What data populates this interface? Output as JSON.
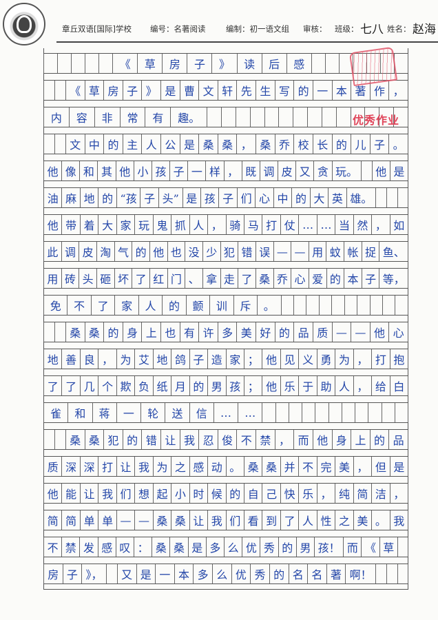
{
  "header": {
    "school": "章丘双语[国际]学校",
    "number": "编号：名著阅读",
    "editor": "编制：初一语文组",
    "review": "审核：",
    "class_label": "班级：",
    "class_value": "七八",
    "name_label": "姓名：",
    "name_value": "赵海"
  },
  "stamp": "优秀作业",
  "ink_color": "#2346a8",
  "stamp_color": "#e0455a",
  "rows": [
    [
      "",
      "",
      "",
      "",
      "",
      "《",
      "草",
      "房",
      "子",
      "》",
      "读",
      "后",
      "感",
      "",
      "",
      "",
      "",
      "",
      "",
      ""
    ],
    [
      "",
      "",
      "《",
      "草",
      "房",
      "子",
      "》",
      "是",
      "曹",
      "文",
      "轩",
      "先",
      "生",
      "写",
      "的",
      "一",
      "本",
      "著",
      "作",
      "，"
    ],
    [
      "内",
      "容",
      "非",
      "常",
      "有",
      "趣。",
      "",
      "",
      "",
      "",
      "",
      "",
      "",
      "",
      "",
      "",
      "",
      "",
      "",
      ""
    ],
    [
      "",
      "",
      "文",
      "中",
      "的",
      "主",
      "人",
      "公",
      "是",
      "桑",
      "桑",
      "，",
      "桑",
      "乔",
      "校",
      "长",
      "的",
      "儿",
      "子",
      "。"
    ],
    [
      "他",
      "像",
      "和",
      "其",
      "他",
      "小",
      "孩",
      "子",
      "一",
      "样",
      "，",
      "既",
      "调",
      "皮",
      "又",
      "贪",
      "玩。",
      "",
      "他",
      "是"
    ],
    [
      "油",
      "麻",
      "地",
      "的",
      "“孩",
      "子",
      "头”",
      "是",
      "孩",
      "子",
      "们",
      "心",
      "中",
      "的",
      "大",
      "英",
      "雄。",
      "",
      "",
      ""
    ],
    [
      "他",
      "带",
      "着",
      "大",
      "家",
      "玩",
      "鬼",
      "抓",
      "人",
      "，",
      "骑",
      "马",
      "打",
      "仗",
      "…",
      "…",
      "当",
      "然",
      "，",
      "如"
    ],
    [
      "此",
      "调",
      "皮",
      "淘",
      "气",
      "的",
      "他",
      "也",
      "没",
      "少",
      "犯",
      "错",
      "误",
      "—",
      "—",
      "用",
      "蚊",
      "帐",
      "捉",
      "鱼、"
    ],
    [
      "用",
      "砖",
      "头",
      "砸",
      "坏",
      "了",
      "红",
      "门",
      "、",
      "拿",
      "走",
      "了",
      "桑",
      "乔",
      "心",
      "爱",
      "的",
      "本",
      "子",
      "等，"
    ],
    [
      "免",
      "不",
      "了",
      "家",
      "人",
      "的",
      "颤",
      "训",
      "斥",
      "。",
      "",
      "",
      "",
      "",
      "",
      "",
      "",
      "",
      "",
      ""
    ],
    [
      "",
      "",
      "桑",
      "桑",
      "的",
      "身",
      "上",
      "也",
      "有",
      "许",
      "多",
      "美",
      "好",
      "的",
      "品",
      "质",
      "—",
      "—",
      "他",
      "心"
    ],
    [
      "地",
      "善",
      "良",
      "，",
      "为",
      "艾",
      "地",
      "鸽",
      "子",
      "造",
      "家",
      "；",
      "他",
      "见",
      "义",
      "勇",
      "为",
      "，",
      "打",
      "抱"
    ],
    [
      "了",
      "了",
      "几",
      "个",
      "欺",
      "负",
      "纸",
      "月",
      "的",
      "男",
      "孩",
      "；",
      "他",
      "乐",
      "于",
      "助",
      "人",
      "，",
      "给",
      "白"
    ],
    [
      "雀",
      "和",
      "蒋",
      "一",
      "轮",
      "送",
      "信",
      "…",
      "…",
      "",
      "",
      "",
      "",
      "",
      "",
      "",
      "",
      "",
      "",
      ""
    ],
    [
      "",
      "",
      "桑",
      "桑",
      "犯",
      "的",
      "错",
      "让",
      "我",
      "忍",
      "俊",
      "不",
      "禁",
      "，",
      "而",
      "他",
      "身",
      "上",
      "的",
      "品"
    ],
    [
      "质",
      "深",
      "深",
      "打",
      "让",
      "我",
      "为",
      "之",
      "感",
      "动",
      "。",
      "桑",
      "桑",
      "并",
      "不",
      "完",
      "美",
      "，",
      "但",
      "是"
    ],
    [
      "他",
      "能",
      "让",
      "我",
      "们",
      "想",
      "起",
      "小",
      "时",
      "候",
      "的",
      "自",
      "己",
      "快",
      "乐",
      "，",
      "纯",
      "简",
      "洁",
      "，"
    ],
    [
      "简",
      "简",
      "单",
      "单",
      "—",
      "—",
      "桑",
      "桑",
      "让",
      "我",
      "们",
      "看",
      "到",
      "了",
      "人",
      "性",
      "之",
      "美",
      "。",
      "我"
    ],
    [
      "不",
      "禁",
      "发",
      "感",
      "叹",
      "：",
      "桑",
      "桑",
      "是",
      "多",
      "么",
      "优",
      "秀",
      "的",
      "男",
      "孩！",
      "而",
      "《",
      "草",
      ""
    ],
    [
      "房",
      "子",
      "》，",
      "",
      "又",
      "是",
      "一",
      "本",
      "多",
      "么",
      "优",
      "秀",
      "的",
      "名",
      "名",
      "著",
      "啊！",
      "",
      "",
      ""
    ]
  ]
}
